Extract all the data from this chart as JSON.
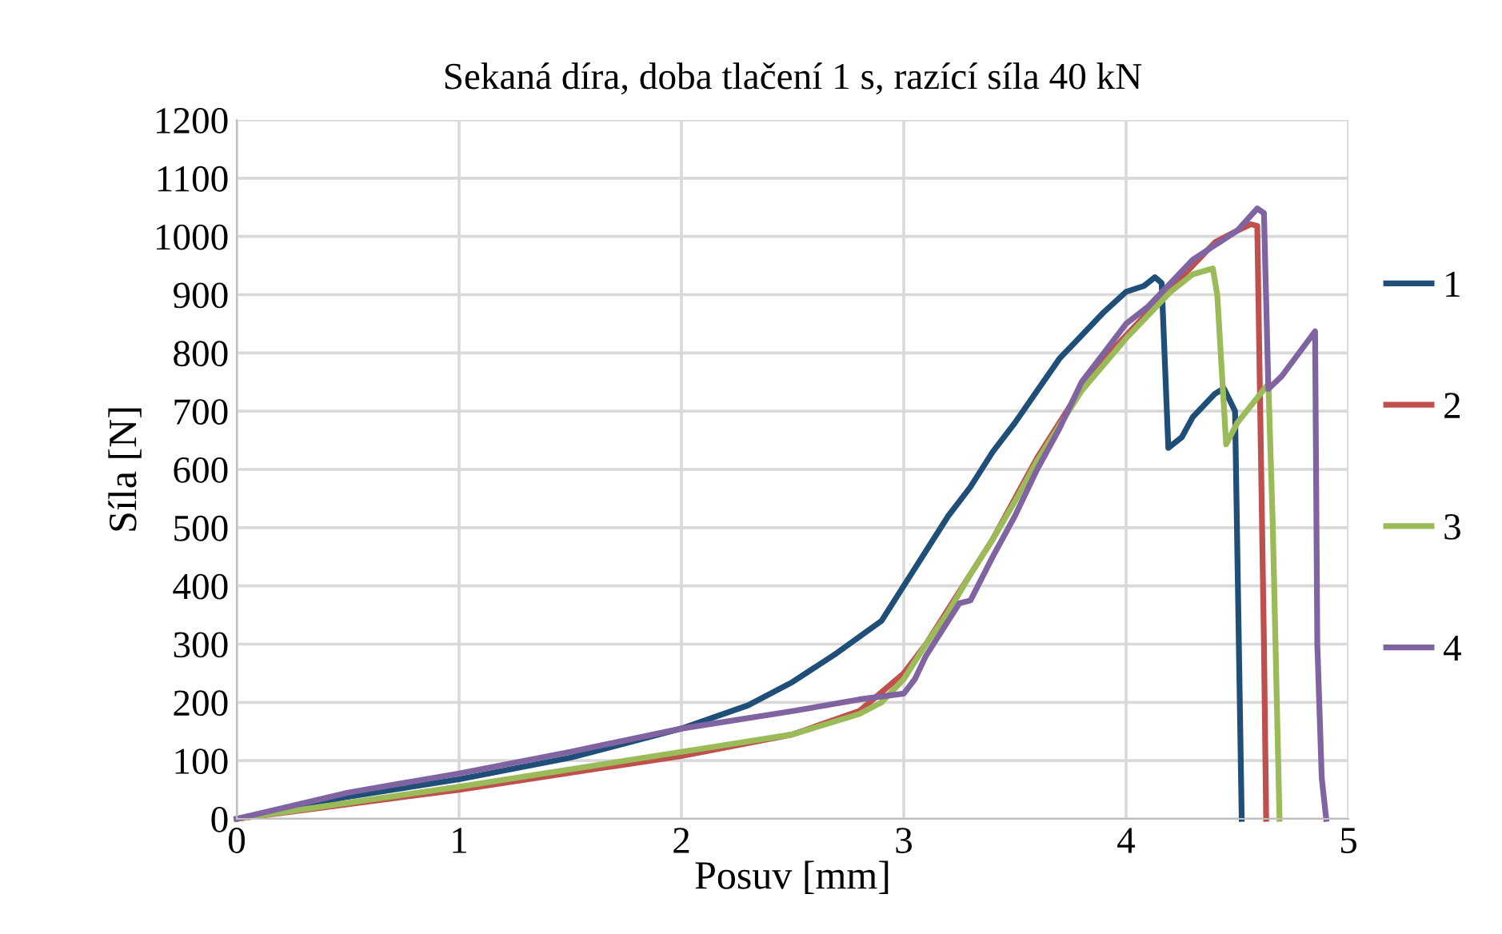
{
  "chart_data": {
    "type": "line",
    "title": "Sekaná díra, doba tlačení 1 s, razící síla 40 kN",
    "xlabel": "Posuv [mm]",
    "ylabel": "Síla [N]",
    "xlim": [
      0,
      5
    ],
    "xticks": [
      0,
      1,
      2,
      3,
      4,
      5
    ],
    "ylim": [
      0,
      1200
    ],
    "yticks": [
      0,
      100,
      200,
      300,
      400,
      500,
      600,
      700,
      800,
      900,
      1000,
      1100,
      1200
    ],
    "grid": true,
    "legend": "right",
    "marker": "none",
    "line_style": "solid",
    "series": [
      {
        "name": "1",
        "color": "#1f4e79",
        "x": [
          0,
          0.5,
          1,
          1.5,
          2,
          2.3,
          2.5,
          2.7,
          2.9,
          3.0,
          3.1,
          3.2,
          3.3,
          3.4,
          3.5,
          3.6,
          3.7,
          3.8,
          3.9,
          4.0,
          4.08,
          4.13,
          4.16,
          4.19,
          4.25,
          4.3,
          4.4,
          4.44,
          4.49,
          4.52
        ],
        "values": [
          0,
          38,
          68,
          105,
          155,
          195,
          235,
          285,
          340,
          400,
          460,
          520,
          570,
          630,
          680,
          735,
          790,
          830,
          870,
          905,
          915,
          930,
          920,
          637,
          655,
          690,
          730,
          739,
          700,
          0
        ]
      },
      {
        "name": "2",
        "color": "#c0504d",
        "x": [
          0,
          1,
          2,
          2.5,
          2.8,
          3.0,
          3.1,
          3.2,
          3.3,
          3.4,
          3.5,
          3.6,
          3.7,
          3.8,
          3.9,
          4.0,
          4.1,
          4.2,
          4.3,
          4.4,
          4.5,
          4.56,
          4.59,
          4.62,
          4.63
        ],
        "values": [
          0,
          50,
          108,
          145,
          185,
          250,
          300,
          360,
          420,
          480,
          550,
          620,
          680,
          740,
          790,
          830,
          870,
          910,
          950,
          990,
          1010,
          1021,
          1018,
          300,
          0
        ]
      },
      {
        "name": "3",
        "color": "#9bbb59",
        "x": [
          0,
          1,
          2,
          2.5,
          2.8,
          2.9,
          3.0,
          3.1,
          3.2,
          3.3,
          3.4,
          3.5,
          3.6,
          3.7,
          3.8,
          3.9,
          4.0,
          4.1,
          4.2,
          4.3,
          4.39,
          4.41,
          4.45,
          4.5,
          4.64,
          4.66,
          4.69
        ],
        "values": [
          0,
          55,
          115,
          145,
          180,
          200,
          240,
          300,
          355,
          420,
          480,
          545,
          615,
          675,
          735,
          780,
          825,
          865,
          905,
          935,
          945,
          900,
          643,
          680,
          747,
          500,
          0
        ]
      },
      {
        "name": "4",
        "color": "#8064a2",
        "x": [
          0,
          0.5,
          1,
          1.5,
          2,
          2.5,
          2.8,
          3.0,
          3.05,
          3.1,
          3.2,
          3.25,
          3.3,
          3.4,
          3.5,
          3.6,
          3.7,
          3.8,
          3.9,
          4.0,
          4.1,
          4.2,
          4.3,
          4.4,
          4.5,
          4.59,
          4.62,
          4.64,
          4.7,
          4.85,
          4.86,
          4.88,
          4.9
        ],
        "values": [
          0,
          45,
          78,
          115,
          155,
          185,
          205,
          215,
          240,
          280,
          340,
          370,
          375,
          450,
          520,
          600,
          670,
          750,
          800,
          850,
          880,
          920,
          960,
          985,
          1010,
          1048,
          1040,
          738,
          760,
          837,
          300,
          70,
          0
        ]
      }
    ]
  }
}
